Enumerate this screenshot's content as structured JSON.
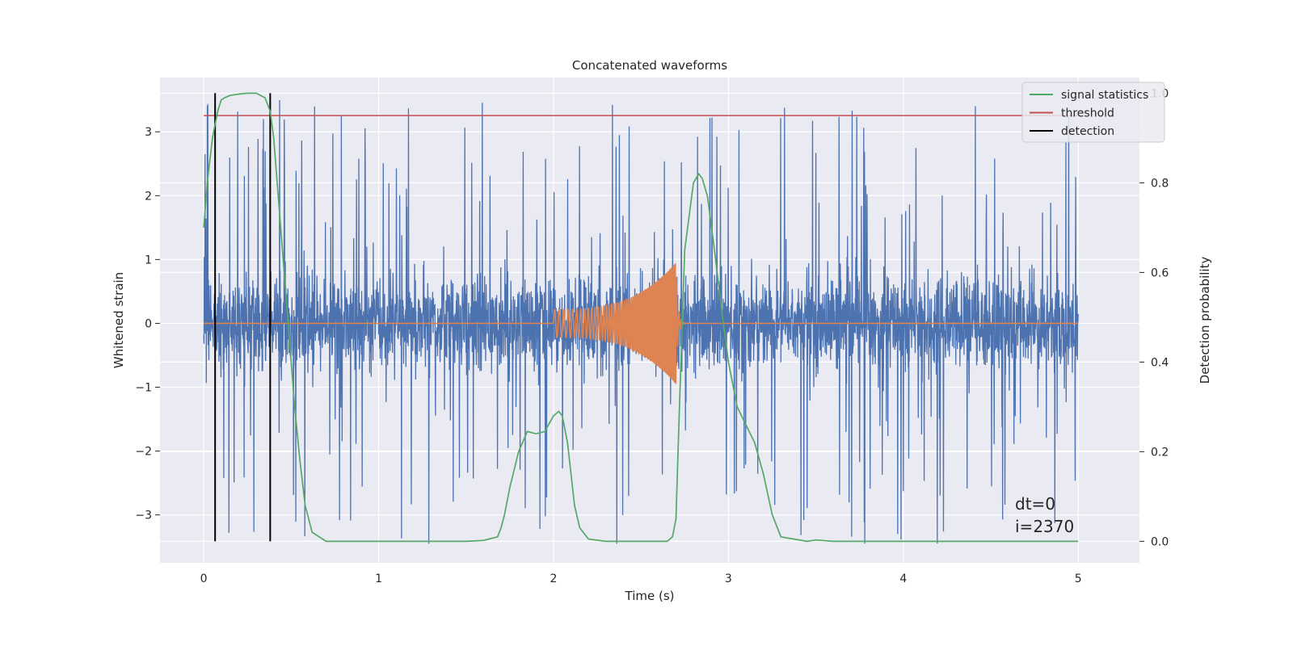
{
  "chart_data": {
    "type": "line",
    "title": "Concatenated waveforms",
    "xlabel": "Time (s)",
    "ylabel": "Whitened strain",
    "y2label": "Detection probability",
    "xlim": [
      -0.25,
      5.35
    ],
    "ylim": [
      -3.75,
      3.85
    ],
    "y2lim": [
      -0.048,
      1.035
    ],
    "xticks": [
      0,
      1,
      2,
      3,
      4,
      5
    ],
    "yticks": [
      -3,
      -2,
      -1,
      0,
      1,
      2,
      3
    ],
    "y2ticks": [
      0.0,
      0.2,
      0.4,
      0.6,
      0.8,
      1.0
    ],
    "xtick_labels": [
      "0",
      "1",
      "2",
      "3",
      "4",
      "5"
    ],
    "ytick_labels": [
      "−3",
      "−2",
      "−1",
      "0",
      "1",
      "2",
      "3"
    ],
    "y2tick_labels": [
      "0.0",
      "0.2",
      "0.4",
      "0.6",
      "0.8",
      "1.0"
    ],
    "grid": true,
    "legend_position": "top-right",
    "legend": [
      "signal statistics",
      "threshold",
      "detection"
    ],
    "colors": {
      "strain": "#4c72b0",
      "waveform": "#dd8452",
      "signal_statistics": "#55a868",
      "threshold": "#c44e52",
      "detection": "#000000",
      "plot_bg": "#eaeaf2",
      "grid": "#ffffff"
    },
    "strain": {
      "x_range": [
        0,
        5
      ],
      "band_std": 0.65,
      "spike_max": 3.5,
      "spike_min": -3.45
    },
    "waveform": {
      "t_start": 2.0,
      "t_merge": 2.7,
      "amp_start": 0.22,
      "amp_peak": 0.95
    },
    "threshold": {
      "value": 0.95,
      "x_range": [
        0,
        5
      ]
    },
    "detections": [
      {
        "x": 0.065,
        "y_top": 1.0,
        "y_bottom": 0.0
      },
      {
        "x": 0.38,
        "y_top": 1.0,
        "y_bottom": 0.0
      }
    ],
    "signal_statistics": {
      "x": [
        0,
        0.02,
        0.05,
        0.08,
        0.1,
        0.12,
        0.15,
        0.2,
        0.25,
        0.3,
        0.35,
        0.38,
        0.4,
        0.42,
        0.44,
        0.46,
        0.48,
        0.5,
        0.52,
        0.55,
        0.58,
        0.62,
        0.7,
        1.0,
        1.5,
        1.6,
        1.68,
        1.7,
        1.72,
        1.75,
        1.8,
        1.85,
        1.9,
        1.95,
        2.0,
        2.03,
        2.05,
        2.08,
        2.1,
        2.12,
        2.15,
        2.2,
        2.3,
        2.5,
        2.65,
        2.68,
        2.7,
        2.72,
        2.75,
        2.8,
        2.83,
        2.85,
        2.88,
        2.92,
        2.96,
        3.0,
        3.05,
        3.1,
        3.15,
        3.2,
        3.25,
        3.3,
        3.45,
        3.5,
        3.6,
        4.0,
        4.5,
        5.0
      ],
      "y": [
        0.7,
        0.8,
        0.9,
        0.96,
        0.985,
        0.99,
        0.995,
        0.998,
        1.0,
        1.0,
        0.99,
        0.96,
        0.9,
        0.8,
        0.7,
        0.6,
        0.5,
        0.4,
        0.3,
        0.18,
        0.08,
        0.02,
        0.0,
        0.0,
        0.0,
        0.002,
        0.01,
        0.03,
        0.06,
        0.12,
        0.2,
        0.245,
        0.24,
        0.245,
        0.28,
        0.29,
        0.28,
        0.22,
        0.15,
        0.08,
        0.03,
        0.005,
        0.0,
        0.0,
        0.0,
        0.01,
        0.05,
        0.3,
        0.65,
        0.8,
        0.82,
        0.81,
        0.77,
        0.65,
        0.52,
        0.4,
        0.3,
        0.26,
        0.22,
        0.15,
        0.06,
        0.01,
        0.0,
        0.003,
        0.0,
        0.0,
        0.0,
        0.0
      ]
    },
    "annotations": [
      "dt=0",
      "i=2370"
    ]
  }
}
